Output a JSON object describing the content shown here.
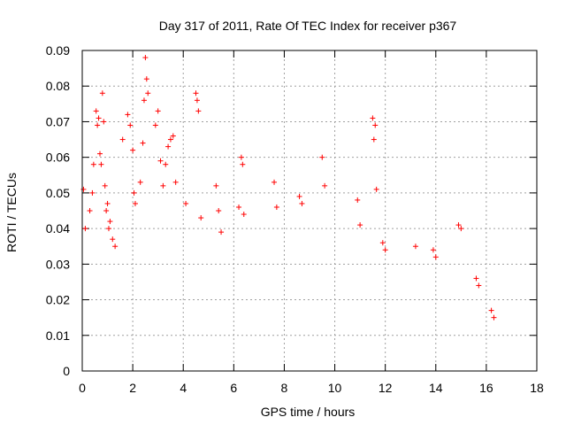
{
  "chart_data": {
    "type": "scatter",
    "title": "Day 317 of 2011, Rate Of TEC Index for receiver p367",
    "xlabel": "GPS time / hours",
    "ylabel": "ROTI / TECUs",
    "xlim": [
      0,
      18
    ],
    "ylim": [
      0,
      0.09
    ],
    "xticks": [
      "0",
      "2",
      "4",
      "6",
      "8",
      "10",
      "12",
      "14",
      "16",
      "18"
    ],
    "yticks": [
      "0",
      "0.01",
      "0.02",
      "0.03",
      "0.04",
      "0.05",
      "0.06",
      "0.07",
      "0.08",
      "0.09"
    ],
    "grid": true,
    "marker": "plus",
    "color": "#ff0000",
    "series": [
      {
        "x": [
          0.05,
          0.12,
          0.3,
          0.4,
          0.45,
          0.55,
          0.6,
          0.65,
          0.7,
          0.75,
          0.8,
          0.85,
          0.9,
          0.95,
          1.0,
          1.05,
          1.1,
          1.2,
          1.3,
          1.6,
          1.8,
          1.9,
          2.0,
          2.05,
          2.1,
          2.3,
          2.4,
          2.45,
          2.5,
          2.55,
          2.6,
          2.9,
          3.0,
          3.1,
          3.2,
          3.3,
          3.4,
          3.5,
          3.6,
          3.7,
          4.1,
          4.5,
          4.55,
          4.6,
          4.7,
          5.3,
          5.4,
          5.5,
          6.2,
          6.3,
          6.35,
          6.4,
          7.6,
          7.7,
          8.6,
          8.7,
          9.5,
          9.6,
          10.9,
          11.0,
          11.5,
          11.55,
          11.6,
          11.65,
          11.9,
          12.0,
          13.2,
          13.9,
          14.0,
          14.9,
          15.0,
          15.6,
          15.7,
          16.2,
          16.3
        ],
        "y": [
          0.051,
          0.04,
          0.045,
          0.05,
          0.058,
          0.073,
          0.069,
          0.071,
          0.061,
          0.058,
          0.078,
          0.07,
          0.052,
          0.045,
          0.047,
          0.04,
          0.042,
          0.037,
          0.035,
          0.065,
          0.072,
          0.069,
          0.062,
          0.05,
          0.047,
          0.053,
          0.064,
          0.076,
          0.088,
          0.082,
          0.078,
          0.069,
          0.073,
          0.059,
          0.052,
          0.058,
          0.063,
          0.065,
          0.066,
          0.053,
          0.047,
          0.078,
          0.076,
          0.073,
          0.043,
          0.052,
          0.045,
          0.039,
          0.046,
          0.06,
          0.058,
          0.044,
          0.053,
          0.046,
          0.049,
          0.047,
          0.06,
          0.052,
          0.048,
          0.041,
          0.071,
          0.065,
          0.069,
          0.051,
          0.036,
          0.034,
          0.035,
          0.034,
          0.032,
          0.041,
          0.04,
          0.026,
          0.024,
          0.017,
          0.015
        ]
      }
    ]
  }
}
